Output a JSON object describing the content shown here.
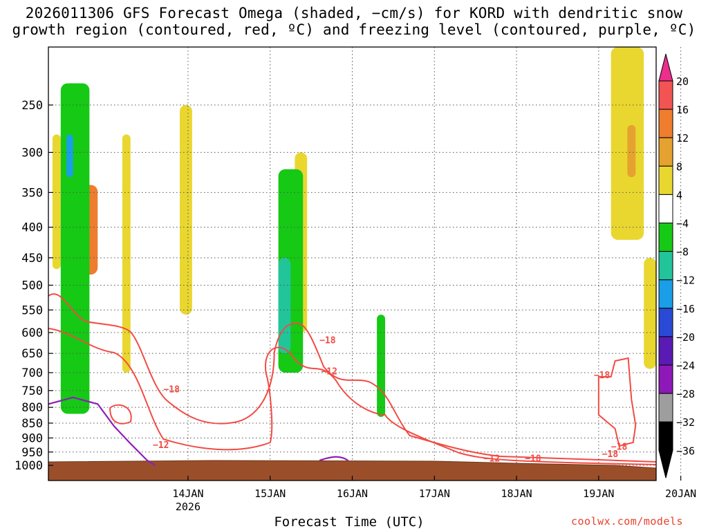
{
  "title": {
    "line1": "2026011306 GFS Forecast Omega (shaded, −cm/s) for KORD with dendritic snow",
    "line2": "growth region (contoured, red, ºC) and freezing level (contoured, purple, ºC)"
  },
  "credit": "coolwx.com/models",
  "chart_data": {
    "type": "heatmap",
    "title": "2026011306 GFS Forecast Omega (shaded, −cm/s) for KORD with dendritic snow growth region (contoured, red, ºC) and freezing level (contoured, purple, ºC)",
    "xlabel": "Forecast Time (UTC)",
    "ylabel": "",
    "x_ticks": [
      {
        "label": "14JAN",
        "sublabel": "2026",
        "day": 1
      },
      {
        "label": "15JAN",
        "day": 2
      },
      {
        "label": "16JAN",
        "day": 3
      },
      {
        "label": "17JAN",
        "day": 4
      },
      {
        "label": "18JAN",
        "day": 5
      },
      {
        "label": "19JAN",
        "day": 6
      },
      {
        "label": "20JAN",
        "day": 7
      }
    ],
    "xlim_days": [
      -0.7,
      6.7
    ],
    "y_ticks": [
      250,
      300,
      350,
      400,
      450,
      500,
      550,
      600,
      650,
      700,
      750,
      800,
      850,
      900,
      950,
      1000
    ],
    "ylim_hpa": [
      200,
      1000
    ],
    "y_scale": "log",
    "grid": true,
    "colorbar": {
      "labels": [
        "20",
        "16",
        "12",
        "8",
        "4",
        "−4",
        "−8",
        "−12",
        "−16",
        "−20",
        "−24",
        "−28",
        "−32",
        "−36"
      ],
      "colors": [
        "#ec2f8c",
        "#f25454",
        "#ee7d2e",
        "#e5a22e",
        "#e9d730",
        "#ffffff",
        "#15c915",
        "#22c49a",
        "#1a9ee8",
        "#2a4ad6",
        "#5a1bb5",
        "#8e18b8",
        "#9e9e9e",
        "#000000"
      ]
    },
    "dgz_contour_labels": [
      {
        "text": "−18",
        "day": 0.8,
        "p": 755
      },
      {
        "text": "−12",
        "day": 0.67,
        "p": 935
      },
      {
        "text": "−18",
        "day": 2.7,
        "p": 625
      },
      {
        "text": "−12",
        "day": 2.72,
        "p": 705
      },
      {
        "text": "−12",
        "day": 4.7,
        "p": 985
      },
      {
        "text": "−18",
        "day": 5.2,
        "p": 985
      },
      {
        "text": "−18",
        "day": 6.04,
        "p": 715
      },
      {
        "text": "−18",
        "day": 6.25,
        "p": 942
      },
      {
        "text": "−18",
        "day": 6.14,
        "p": 968
      }
    ],
    "omega_regions": [
      {
        "value": 4,
        "day0": -0.65,
        "day1": -0.55,
        "p0": 280,
        "p1": 470
      },
      {
        "value": 12,
        "day0": -0.35,
        "day1": -0.1,
        "p0": 340,
        "p1": 480
      },
      {
        "value": -8,
        "day0": -0.55,
        "day1": -0.2,
        "p0": 230,
        "p1": 820
      },
      {
        "value": -16,
        "day0": -0.48,
        "day1": -0.4,
        "p0": 280,
        "p1": 330
      },
      {
        "value": 4,
        "day0": 0.2,
        "day1": 0.3,
        "p0": 280,
        "p1": 700
      },
      {
        "value": 4,
        "day0": 0.9,
        "day1": 1.05,
        "p0": 250,
        "p1": 560
      },
      {
        "value": 4,
        "day0": 2.3,
        "day1": 2.45,
        "p0": 300,
        "p1": 600
      },
      {
        "value": -8,
        "day0": 2.1,
        "day1": 2.4,
        "p0": 320,
        "p1": 700
      },
      {
        "value": -12,
        "day0": 2.1,
        "day1": 2.25,
        "p0": 450,
        "p1": 650
      },
      {
        "value": -8,
        "day0": 3.3,
        "day1": 3.4,
        "p0": 560,
        "p1": 830
      },
      {
        "value": 4,
        "day0": 6.15,
        "day1": 6.55,
        "p0": 200,
        "p1": 420
      },
      {
        "value": 8,
        "day0": 6.35,
        "day1": 6.45,
        "p0": 270,
        "p1": 330
      },
      {
        "value": 4,
        "day0": 6.55,
        "day1": 6.7,
        "p0": 450,
        "p1": 690
      }
    ],
    "freezing_level_hpa": [
      {
        "day": -0.7,
        "p": 790
      },
      {
        "day": -0.4,
        "p": 770
      },
      {
        "day": -0.1,
        "p": 790
      },
      {
        "day": 0.1,
        "p": 860
      },
      {
        "day": 0.3,
        "p": 920
      },
      {
        "day": 0.5,
        "p": 980
      },
      {
        "day": 0.6,
        "p": 1000
      }
    ]
  }
}
